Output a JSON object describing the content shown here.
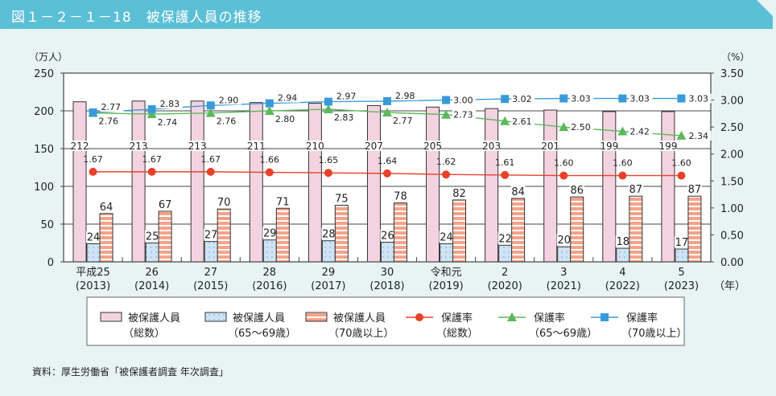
{
  "title": "図１－２－１－18　被保護人員の推移",
  "source": "資料：厚生労働省「被保護者調査 年次調査」",
  "colors": {
    "title_bar": "#5bbfd6",
    "pink": "#f4d3e1",
    "blue": "#cfe3f4",
    "orange": "#f6a38a",
    "rate_total": "#e8412a",
    "rate_65_69": "#5cb85c",
    "rate_70": "#3a9ad9"
  },
  "chart_data": {
    "type": "bar+line",
    "categories": [
      [
        "平成25",
        "(2013)"
      ],
      [
        "26",
        "(2014)"
      ],
      [
        "27",
        "(2015)"
      ],
      [
        "28",
        "(2016)"
      ],
      [
        "29",
        "(2017)"
      ],
      [
        "30",
        "(2018)"
      ],
      [
        "令和元",
        "(2019)"
      ],
      [
        "2",
        "(2020)"
      ],
      [
        "3",
        "(2021)"
      ],
      [
        "4",
        "(2022)"
      ],
      [
        "5",
        "(2023)"
      ]
    ],
    "x_unit": "（年）",
    "y_left": {
      "label": "（万人）",
      "range": [
        0,
        250
      ],
      "ticks": [
        "0",
        "50",
        "100",
        "150",
        "200",
        "250"
      ]
    },
    "y_right": {
      "label": "（%）",
      "range": [
        0,
        3.5
      ],
      "ticks": [
        "0.00",
        "0.50",
        "1.00",
        "1.50",
        "2.00",
        "2.50",
        "3.00",
        "3.50"
      ]
    },
    "grid": true,
    "bars": [
      {
        "name": [
          "被保護人員",
          "（総数）"
        ],
        "values": [
          212,
          213,
          213,
          211,
          210,
          207,
          205,
          203,
          201,
          199,
          199
        ]
      },
      {
        "name": [
          "被保護人員",
          "（65～69歳）"
        ],
        "values": [
          24,
          25,
          27,
          29,
          28,
          26,
          24,
          22,
          20,
          18,
          17
        ]
      },
      {
        "name": [
          "被保護人員",
          "（70歳以上）"
        ],
        "values": [
          64,
          67,
          70,
          71,
          75,
          78,
          82,
          84,
          86,
          87,
          87
        ]
      }
    ],
    "lines": [
      {
        "name": [
          "保護率",
          "（総数）"
        ],
        "marker": "circle",
        "values": [
          1.67,
          1.67,
          1.67,
          1.66,
          1.65,
          1.64,
          1.62,
          1.61,
          1.6,
          1.6,
          1.6
        ]
      },
      {
        "name": [
          "保護率",
          "（65～69歳）"
        ],
        "marker": "triangle",
        "values": [
          2.76,
          2.74,
          2.76,
          2.8,
          2.83,
          2.77,
          2.73,
          2.61,
          2.5,
          2.42,
          2.34
        ]
      },
      {
        "name": [
          "保護率",
          "（70歳以上）"
        ],
        "marker": "square",
        "values": [
          2.77,
          2.83,
          2.9,
          2.94,
          2.97,
          2.98,
          3.0,
          3.02,
          3.03,
          3.03,
          3.03
        ]
      }
    ],
    "legend": "bottom"
  }
}
